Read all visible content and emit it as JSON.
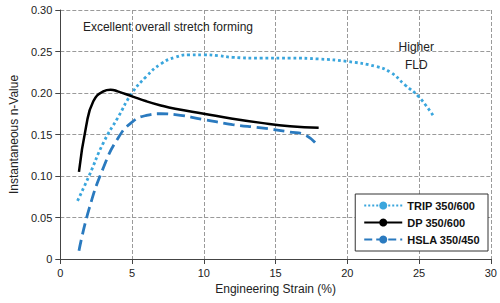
{
  "chart_data": {
    "type": "line",
    "x_label": "Engineering Strain (%)",
    "y_label": "Instantaneous n-Value",
    "xlim": [
      0,
      30
    ],
    "xticks": [
      0,
      5,
      10,
      15,
      20,
      25,
      30
    ],
    "ylim": [
      0,
      0.3
    ],
    "yticks": [
      {
        "value": 0,
        "label": "0"
      },
      {
        "value": 0.05,
        "label": "0.05"
      },
      {
        "value": 0.1,
        "label": "0.10"
      },
      {
        "value": 0.15,
        "label": "0.15"
      },
      {
        "value": 0.2,
        "label": "0.20"
      },
      {
        "value": 0.25,
        "label": "0.25"
      },
      {
        "value": 0.3,
        "label": "0.30"
      }
    ],
    "grid": true,
    "legend": "lower right",
    "annotations": [
      {
        "text": "Excellent overall stretch forming",
        "x": 7.5,
        "y": 0.28
      },
      {
        "text": "Higher\nFLD",
        "x": 24.8,
        "y": 0.245
      }
    ],
    "series": [
      {
        "name": "TRIP 350/600",
        "color": "#3aa6dd",
        "line_style": "dotted",
        "x": [
          1.2,
          2,
          3,
          4,
          5,
          6,
          7,
          8,
          9,
          10,
          11,
          12,
          14,
          16,
          18,
          20,
          22,
          23,
          24,
          25,
          26
        ],
        "values": [
          0.07,
          0.1,
          0.14,
          0.17,
          0.2,
          0.22,
          0.235,
          0.243,
          0.246,
          0.246,
          0.245,
          0.243,
          0.242,
          0.242,
          0.241,
          0.238,
          0.232,
          0.225,
          0.21,
          0.195,
          0.172
        ]
      },
      {
        "name": "DP 350/600",
        "color": "#000000",
        "line_style": "solid",
        "x": [
          1.3,
          1.8,
          2.3,
          3,
          3.5,
          4,
          5,
          6,
          7,
          8,
          10,
          12,
          14,
          16,
          18
        ],
        "values": [
          0.105,
          0.16,
          0.19,
          0.202,
          0.204,
          0.202,
          0.196,
          0.19,
          0.185,
          0.181,
          0.175,
          0.169,
          0.164,
          0.16,
          0.158
        ]
      },
      {
        "name": "HSLA 350/450",
        "color": "#2a7abf",
        "line_style": "dashed",
        "x": [
          1.3,
          2,
          3,
          4,
          5,
          6,
          7,
          8,
          10,
          12,
          14,
          16,
          17,
          18
        ],
        "values": [
          0.01,
          0.06,
          0.11,
          0.145,
          0.165,
          0.173,
          0.175,
          0.174,
          0.168,
          0.162,
          0.158,
          0.153,
          0.15,
          0.135
        ]
      }
    ]
  }
}
